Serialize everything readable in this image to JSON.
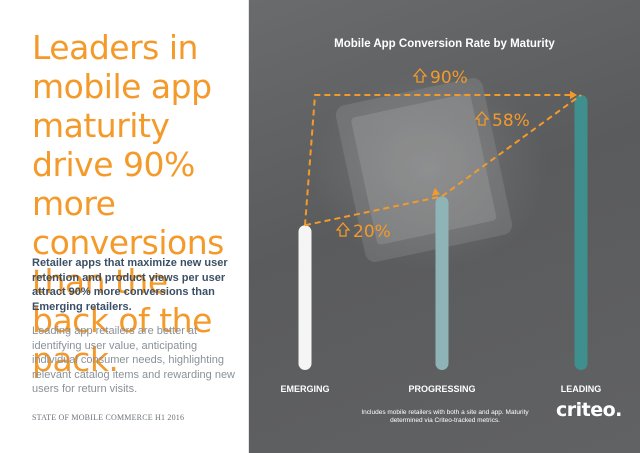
{
  "headline": "Leaders in mobile app maturity drive 90% more conversions than the back of the pack.",
  "bold_paragraph": "Retailer apps that maximize new user retention and product views per user attract 90% more conversions than Emerging retailers.",
  "body_paragraph": "Leading app retailers are better at identifying user value, anticipating individual consumer needs, highlighting relevant catalog items and rewarding new users for return visits.",
  "footer": "STATE OF MOBILE COMMERCE H1 2016",
  "note": "Includes mobile retailers with both a site and app. Maturity determined via Criteo-tracked metrics.",
  "logo": "criteo.",
  "colors": {
    "accent": "#f39a2b",
    "bar_emerging": "#f5f5f5",
    "bar_progressing": "#8fb4b8",
    "bar_leading": "#3f8f8f",
    "panel": "#5e5f61"
  },
  "chart_data": {
    "type": "bar",
    "title": "Mobile App Conversion Rate by Maturity",
    "categories": [
      "EMERGING",
      "PROGRESSING",
      "LEADING"
    ],
    "relative_values": [
      100,
      120,
      190
    ],
    "annotations": [
      {
        "label": "20%",
        "from": "EMERGING",
        "to": "PROGRESSING"
      },
      {
        "label": "58%",
        "from": "PROGRESSING",
        "to": "LEADING"
      },
      {
        "label": "90%",
        "from": "EMERGING",
        "to": "LEADING"
      }
    ],
    "grid": false,
    "legend": "none"
  }
}
